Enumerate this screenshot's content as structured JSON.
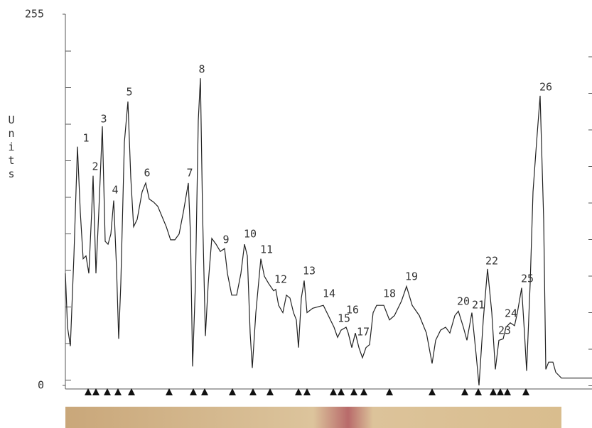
{
  "chart_data": {
    "type": "line",
    "y_label": "Units",
    "ylim": [
      0,
      255
    ],
    "yticks": [
      0,
      255
    ],
    "xlim": [
      0,
      741
    ],
    "annotations": [
      "1",
      "2",
      "3",
      "4",
      "5",
      "6",
      "7",
      "8",
      "9",
      "10",
      "11",
      "12",
      "13",
      "14",
      "15",
      "16",
      "17",
      "18",
      "19",
      "20",
      "21",
      "22",
      "23",
      "24",
      "25",
      "26"
    ],
    "series": [
      {
        "color": "#222",
        "x": [
          0,
          3,
          7,
          12,
          17,
          21,
          25,
          29,
          33,
          37,
          39,
          43,
          47,
          52,
          56,
          60,
          64,
          68,
          72,
          75,
          78,
          83,
          88,
          92,
          96,
          101,
          108,
          113,
          118,
          124,
          130,
          136,
          142,
          148,
          154,
          160,
          166,
          173,
          176,
          179,
          183,
          187,
          190,
          193,
          197,
          201,
          206,
          212,
          218,
          224,
          228,
          234,
          241,
          247,
          252,
          256,
          260,
          263,
          268,
          275,
          280,
          286,
          293,
          296,
          300,
          306,
          311,
          316,
          321,
          325,
          328,
          332,
          336,
          340,
          348,
          363,
          368,
          378,
          383,
          388,
          395,
          398,
          403,
          408,
          413,
          418,
          423,
          428,
          433,
          438,
          448,
          456,
          463,
          473,
          480,
          488,
          498,
          508,
          516,
          521,
          528,
          535,
          541,
          548,
          553,
          560,
          565,
          572,
          578,
          582,
          588,
          594,
          600,
          605,
          610,
          616,
          620,
          626,
          632,
          636,
          642,
          646,
          649,
          654,
          658,
          663,
          668,
          673,
          676,
          680,
          686,
          690,
          698,
          741
        ],
        "values": [
          77,
          40,
          27,
          89,
          164,
          119,
          87,
          89,
          77,
          119,
          144,
          77,
          119,
          178,
          99,
          97,
          104,
          127,
          80,
          32,
          70,
          167,
          195,
          143,
          109,
          114,
          133,
          139,
          128,
          126,
          123,
          116,
          109,
          100,
          100,
          104,
          119,
          139,
          104,
          13,
          70,
          182,
          211,
          119,
          34,
          70,
          101,
          97,
          92,
          94,
          77,
          62,
          62,
          77,
          97,
          89,
          36,
          12,
          50,
          87,
          75,
          70,
          65,
          66,
          55,
          50,
          62,
          60,
          50,
          45,
          26,
          60,
          72,
          50,
          53,
          55,
          50,
          40,
          33,
          38,
          40,
          36,
          26,
          36,
          26,
          19,
          26,
          28,
          50,
          55,
          55,
          45,
          48,
          58,
          68,
          55,
          48,
          36,
          15,
          31,
          38,
          40,
          36,
          48,
          51,
          40,
          31,
          50,
          21,
          0,
          45,
          80,
          50,
          11,
          31,
          32,
          40,
          43,
          41,
          50,
          67,
          36,
          10,
          70,
          133,
          167,
          199,
          114,
          11,
          16,
          16,
          9,
          5,
          5
        ]
      }
    ]
  }
}
